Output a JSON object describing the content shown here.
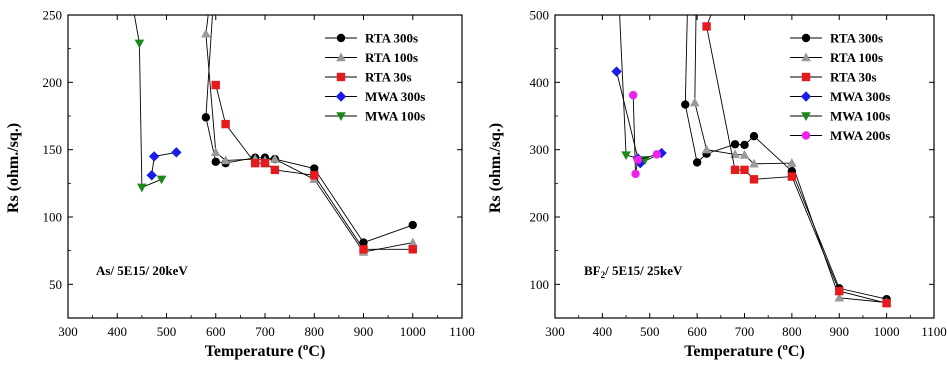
{
  "chart_data": [
    {
      "type": "line",
      "title": "",
      "xlabel": "Temperature",
      "xlabel_sup": "o",
      "xlabel_unit": "C",
      "ylabel": "Rs (ohm./sq.)",
      "xlim": [
        300,
        1100
      ],
      "ylim": [
        25,
        250
      ],
      "xticks": [
        300,
        400,
        500,
        600,
        700,
        800,
        900,
        1000,
        1100
      ],
      "yticks": [
        50,
        100,
        150,
        200,
        250
      ],
      "annotation": {
        "main": "As/ 5E15/ 20keV",
        "sub": ""
      },
      "legend_position": "top-right",
      "grid": false,
      "series": [
        {
          "name": "RTA 300s",
          "color": "#000000",
          "marker": "circle",
          "x": [
            595,
            580,
            600,
            620,
            680,
            700,
            720,
            800,
            900,
            1000
          ],
          "y": [
            260,
            174,
            141,
            140,
            144,
            144,
            143,
            136,
            81,
            94
          ]
        },
        {
          "name": "RTA 100s",
          "color": "#999999",
          "marker": "triangle-up",
          "x": [
            588,
            580,
            600,
            620,
            680,
            700,
            720,
            800,
            900,
            1000
          ],
          "y": [
            260,
            236,
            148,
            142,
            143,
            142,
            143,
            128,
            74,
            81
          ]
        },
        {
          "name": "RTA 30s",
          "color": "#e41a1c",
          "marker": "square",
          "x": [
            600,
            620,
            680,
            700,
            720,
            800,
            900,
            1000
          ],
          "y": [
            198,
            169,
            140,
            140,
            135,
            131,
            76,
            76
          ]
        },
        {
          "name": "MWA 300s",
          "color": "#1c1ce6",
          "marker": "diamond",
          "x": [
            470,
            475,
            520
          ],
          "y": [
            131,
            145,
            148
          ]
        },
        {
          "name": "MWA 100s",
          "color": "#1a8a1a",
          "marker": "triangle-down",
          "x": [
            430,
            445,
            450,
            490
          ],
          "y": [
            260,
            229,
            122,
            128
          ]
        }
      ]
    },
    {
      "type": "line",
      "title": "",
      "xlabel": "Temperature",
      "xlabel_sup": "o",
      "xlabel_unit": "C",
      "ylabel": "Rs (ohm./sq.)",
      "xlim": [
        300,
        1100
      ],
      "ylim": [
        50,
        500
      ],
      "xticks": [
        300,
        400,
        500,
        600,
        700,
        800,
        900,
        1000,
        1100
      ],
      "yticks": [
        100,
        200,
        300,
        400,
        500
      ],
      "annotation": {
        "main": "BF",
        "sub": "2",
        "rest": "/ 5E15/ 25keV"
      },
      "legend_position": "top-right",
      "grid": false,
      "series": [
        {
          "name": "RTA 300s",
          "color": "#000000",
          "marker": "circle",
          "x": [
            580,
            575,
            600,
            620,
            680,
            700,
            720,
            800,
            900,
            1000
          ],
          "y": [
            520,
            367,
            281,
            294,
            308,
            307,
            320,
            268,
            94,
            78
          ]
        },
        {
          "name": "RTA 100s",
          "color": "#999999",
          "marker": "triangle-up",
          "x": [
            598,
            595,
            620,
            680,
            700,
            720,
            800,
            900,
            1000
          ],
          "y": [
            520,
            370,
            300,
            293,
            292,
            279,
            280,
            80,
            73
          ]
        },
        {
          "name": "RTA 30s",
          "color": "#e41a1c",
          "marker": "square",
          "x": [
            640,
            620,
            680,
            700,
            720,
            800,
            900,
            1000
          ],
          "y": [
            520,
            483,
            270,
            270,
            256,
            260,
            90,
            72
          ]
        },
        {
          "name": "MWA 300s",
          "color": "#1c1ce6",
          "marker": "diamond",
          "x": [
            430,
            475,
            480,
            525
          ],
          "y": [
            416,
            287,
            280,
            295
          ]
        },
        {
          "name": "MWA 100s",
          "color": "#1a8a1a",
          "marker": "triangle-down",
          "x": [
            435,
            450,
            490
          ],
          "y": [
            520,
            292,
            285
          ]
        },
        {
          "name": "MWA 200s",
          "color": "#ee22ee",
          "marker": "circle",
          "x": [
            465,
            470,
            475,
            515
          ],
          "y": [
            381,
            264,
            285,
            293
          ]
        }
      ]
    }
  ]
}
